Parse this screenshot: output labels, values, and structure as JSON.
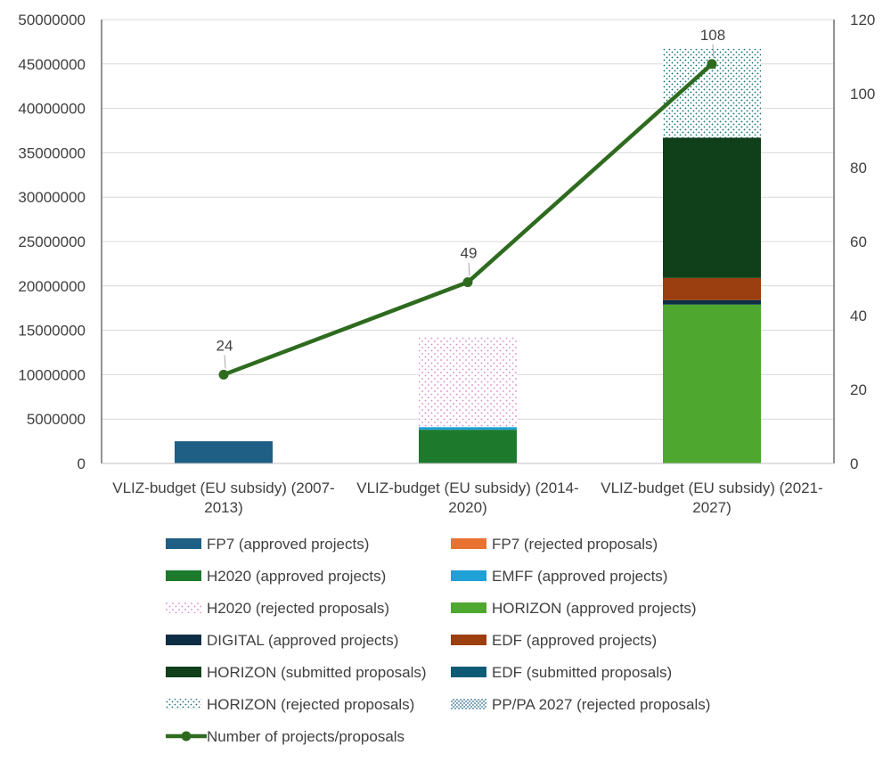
{
  "chart_data": {
    "type": "bar",
    "categories": [
      [
        "VLIZ-budget (EU subsidy) (2007-",
        "2013)"
      ],
      [
        "VLIZ-budget (EU subsidy) (2014-",
        "2020)"
      ],
      [
        "VLIZ-budget (EU subsidy) (2021-",
        "2027)"
      ]
    ],
    "ylim": [
      0,
      50000000
    ],
    "y_ticks": [
      "0",
      "5000000",
      "10000000",
      "15000000",
      "20000000",
      "25000000",
      "30000000",
      "35000000",
      "40000000",
      "45000000",
      "50000000"
    ],
    "y2lim": [
      0,
      120
    ],
    "y2_ticks": [
      "0",
      "20",
      "40",
      "60",
      "80",
      "100",
      "120"
    ],
    "grid": true,
    "legend_position": "bottom",
    "series": [
      {
        "name": "FP7 (approved projects)",
        "color": "#1f5f86",
        "pattern": "solid",
        "values": [
          2500000,
          0,
          0
        ]
      },
      {
        "name": "FP7 (rejected proposals)",
        "color": "#e97132",
        "pattern": "solid",
        "values": [
          0,
          0,
          0
        ]
      },
      {
        "name": "H2020 (approved projects)",
        "color": "#1d7a2d",
        "pattern": "solid",
        "values": [
          0,
          3800000,
          0
        ]
      },
      {
        "name": "EMFF (approved projects)",
        "color": "#1fa0d6",
        "pattern": "solid",
        "values": [
          0,
          300000,
          0
        ]
      },
      {
        "name": "H2020 (rejected proposals)",
        "color": "#d883cf",
        "pattern": "dots",
        "values": [
          0,
          10100000,
          0
        ]
      },
      {
        "name": "HORIZON (approved projects)",
        "color": "#4ea72e",
        "pattern": "solid",
        "values": [
          0,
          0,
          17900000
        ]
      },
      {
        "name": "DIGITAL (approved projects)",
        "color": "#0e2e45",
        "pattern": "solid",
        "values": [
          0,
          0,
          500000
        ]
      },
      {
        "name": "EDF (approved projects)",
        "color": "#9b3e10",
        "pattern": "solid",
        "values": [
          0,
          0,
          2500000
        ]
      },
      {
        "name": "HORIZON (submitted proposals)",
        "color": "#10401a",
        "pattern": "solid",
        "values": [
          0,
          0,
          15800000
        ]
      },
      {
        "name": "EDF (submitted proposals)",
        "color": "#0f5a75",
        "pattern": "solid",
        "values": [
          0,
          0,
          0
        ]
      },
      {
        "name": "HORIZON (rejected proposals)",
        "color": "#0f6a78",
        "pattern": "dots",
        "values": [
          0,
          0,
          10000000
        ]
      },
      {
        "name": "PP/PA 2027 (rejected proposals)",
        "color": "#1f5f86",
        "pattern": "dense",
        "values": [
          0,
          0,
          0
        ]
      }
    ],
    "line": {
      "name": "Number of projects/proposals",
      "axis": "secondary",
      "color": "#2e6b1f",
      "values": [
        24,
        49,
        108
      ],
      "labels": [
        "24",
        "49",
        "108"
      ]
    }
  }
}
